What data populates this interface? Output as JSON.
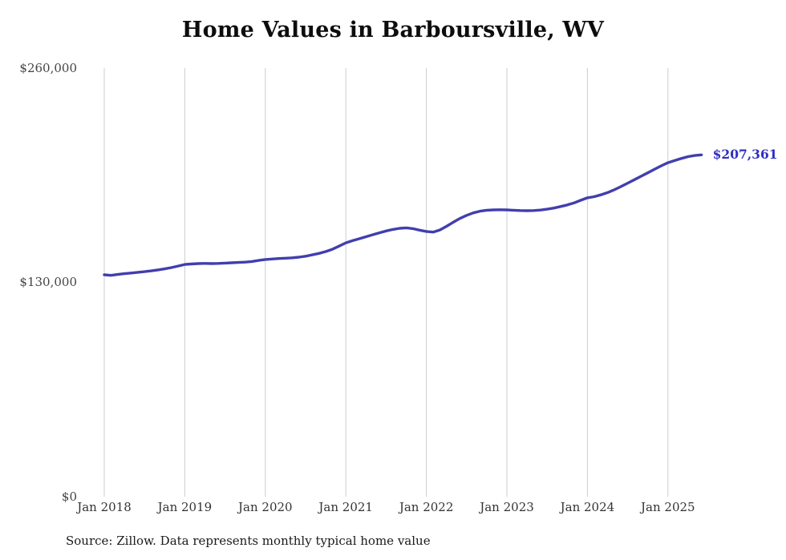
{
  "title": "Home Values in Barboursville, WV",
  "source_note": "Source: Zillow. Data represents monthly typical home value",
  "end_label": "$207,361",
  "chart_data": {
    "type": "line",
    "title": "Home Values in Barboursville, WV",
    "series_name": "Monthly typical home value",
    "unit": "USD",
    "x_start": "2018-01",
    "x_end": "2025-06",
    "x_tick_labels": [
      "Jan 2018",
      "Jan 2019",
      "Jan 2020",
      "Jan 2021",
      "Jan 2022",
      "Jan 2023",
      "Jan 2024",
      "Jan 2025"
    ],
    "y_tick_labels": [
      "$0",
      "$130,000",
      "$260,000"
    ],
    "ylim": [
      0,
      260000
    ],
    "grid": "vertical-only",
    "legend": "none",
    "line_color": "#423eae",
    "label_color": "#2f2fc4",
    "gridline_color": "#cccccc",
    "final_value": 207361,
    "values": [
      134600,
      134300,
      134800,
      135300,
      135700,
      136100,
      136500,
      137000,
      137600,
      138200,
      139000,
      139900,
      140900,
      141200,
      141400,
      141500,
      141400,
      141500,
      141700,
      141900,
      142100,
      142300,
      142700,
      143300,
      143900,
      144200,
      144500,
      144700,
      144900,
      145300,
      145900,
      146700,
      147600,
      148700,
      150100,
      152000,
      154000,
      155300,
      156500,
      157700,
      158900,
      160100,
      161200,
      162100,
      162800,
      163100,
      162600,
      161700,
      160900,
      160500,
      161800,
      164000,
      166500,
      168800,
      170700,
      172200,
      173200,
      173800,
      174000,
      174100,
      174000,
      173800,
      173600,
      173500,
      173600,
      173900,
      174400,
      175100,
      176000,
      177000,
      178200,
      179800,
      181300,
      182000,
      183100,
      184500,
      186200,
      188100,
      190200,
      192300,
      194400,
      196500,
      198600,
      200700,
      202600,
      203900,
      205200,
      206300,
      207000,
      207361
    ]
  }
}
